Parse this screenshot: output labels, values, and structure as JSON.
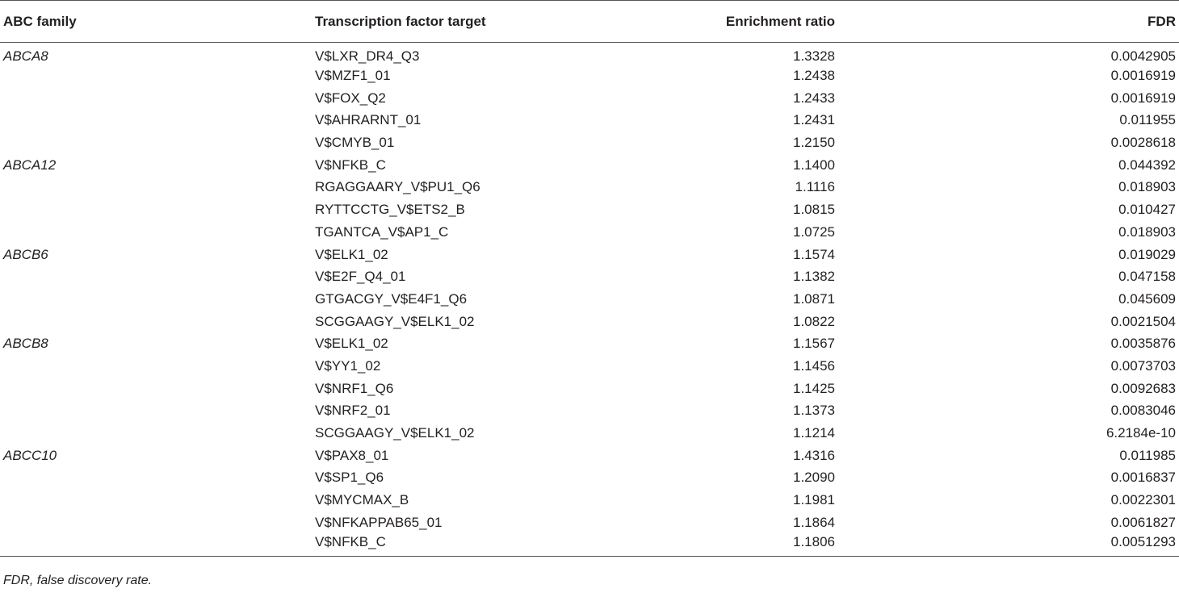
{
  "table": {
    "headers": [
      "ABC family",
      "Transcription factor target",
      "Enrichment ratio",
      "FDR"
    ],
    "rows": [
      {
        "family": "ABCA8",
        "target": "V$LXR_DR4_Q3",
        "ratio": "1.3328",
        "fdr": "0.0042905"
      },
      {
        "family": "",
        "target": "V$MZF1_01",
        "ratio": "1.2438",
        "fdr": "0.0016919"
      },
      {
        "family": "",
        "target": "V$FOX_Q2",
        "ratio": "1.2433",
        "fdr": "0.0016919"
      },
      {
        "family": "",
        "target": "V$AHRARNT_01",
        "ratio": "1.2431",
        "fdr": "0.011955"
      },
      {
        "family": "",
        "target": "V$CMYB_01",
        "ratio": "1.2150",
        "fdr": "0.0028618"
      },
      {
        "family": "ABCA12",
        "target": "V$NFKB_C",
        "ratio": "1.1400",
        "fdr": "0.044392"
      },
      {
        "family": "",
        "target": "RGAGGAARY_V$PU1_Q6",
        "ratio": "1.1116",
        "fdr": "0.018903"
      },
      {
        "family": "",
        "target": "RYTTCCTG_V$ETS2_B",
        "ratio": "1.0815",
        "fdr": "0.010427"
      },
      {
        "family": "",
        "target": "TGANTCA_V$AP1_C",
        "ratio": "1.0725",
        "fdr": "0.018903"
      },
      {
        "family": "ABCB6",
        "target": "V$ELK1_02",
        "ratio": "1.1574",
        "fdr": "0.019029"
      },
      {
        "family": "",
        "target": "V$E2F_Q4_01",
        "ratio": "1.1382",
        "fdr": "0.047158"
      },
      {
        "family": "",
        "target": "GTGACGY_V$E4F1_Q6",
        "ratio": "1.0871",
        "fdr": "0.045609"
      },
      {
        "family": "",
        "target": "SCGGAAGY_V$ELK1_02",
        "ratio": "1.0822",
        "fdr": "0.0021504"
      },
      {
        "family": "ABCB8",
        "target": "V$ELK1_02",
        "ratio": "1.1567",
        "fdr": "0.0035876"
      },
      {
        "family": "",
        "target": "V$YY1_02",
        "ratio": "1.1456",
        "fdr": "0.0073703"
      },
      {
        "family": "",
        "target": "V$NRF1_Q6",
        "ratio": "1.1425",
        "fdr": "0.0092683"
      },
      {
        "family": "",
        "target": "V$NRF2_01",
        "ratio": "1.1373",
        "fdr": "0.0083046"
      },
      {
        "family": "",
        "target": "SCGGAAGY_V$ELK1_02",
        "ratio": "1.1214",
        "fdr": "6.2184e-10"
      },
      {
        "family": "ABCC10",
        "target": "V$PAX8_01",
        "ratio": "1.4316",
        "fdr": "0.011985"
      },
      {
        "family": "",
        "target": "V$SP1_Q6",
        "ratio": "1.2090",
        "fdr": "0.0016837"
      },
      {
        "family": "",
        "target": "V$MYCMAX_B",
        "ratio": "1.1981",
        "fdr": "0.0022301"
      },
      {
        "family": "",
        "target": "V$NFKAPPAB65_01",
        "ratio": "1.1864",
        "fdr": "0.0061827"
      },
      {
        "family": "",
        "target": "V$NFKB_C",
        "ratio": "1.1806",
        "fdr": "0.0051293"
      }
    ]
  },
  "footnote": "FDR, false discovery rate."
}
